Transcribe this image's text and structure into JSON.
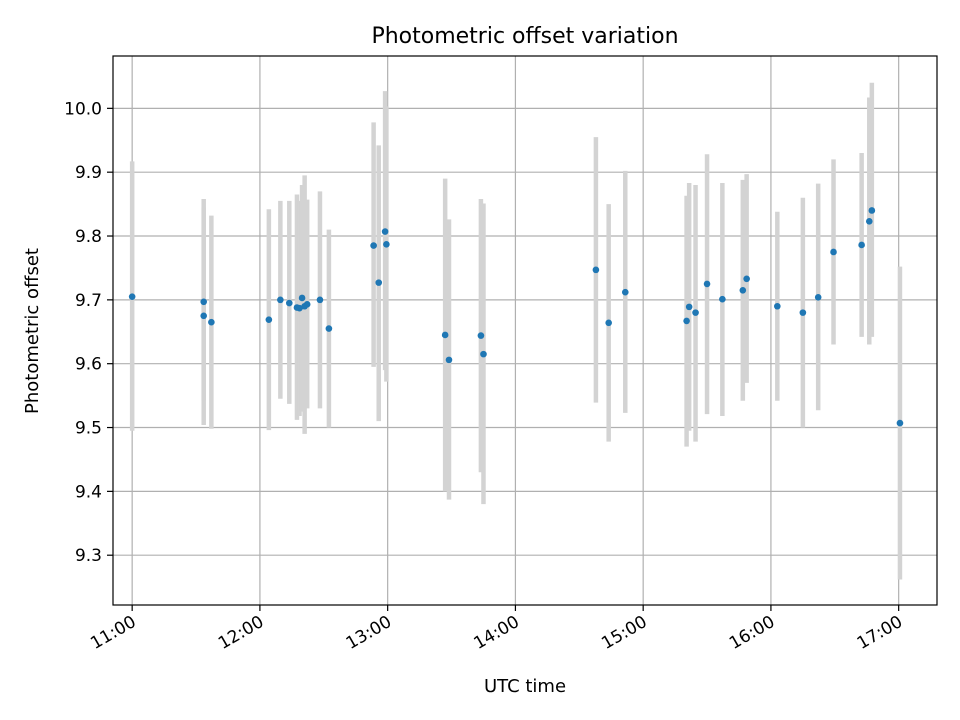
{
  "chart_data": {
    "type": "scatter",
    "title": "Photometric offset variation",
    "xlabel": "UTC time",
    "ylabel": "Photometric offset",
    "x_unit": "hours UTC",
    "xlim": [
      10.85,
      17.3
    ],
    "ylim": [
      9.222,
      10.082
    ],
    "x_ticks": [
      {
        "value": 11,
        "label": "11:00"
      },
      {
        "value": 12,
        "label": "12:00"
      },
      {
        "value": 13,
        "label": "13:00"
      },
      {
        "value": 14,
        "label": "14:00"
      },
      {
        "value": 15,
        "label": "15:00"
      },
      {
        "value": 16,
        "label": "16:00"
      },
      {
        "value": 17,
        "label": "17:00"
      }
    ],
    "y_ticks": [
      {
        "value": 9.3,
        "label": "9.3"
      },
      {
        "value": 9.4,
        "label": "9.4"
      },
      {
        "value": 9.5,
        "label": "9.5"
      },
      {
        "value": 9.6,
        "label": "9.6"
      },
      {
        "value": 9.7,
        "label": "9.7"
      },
      {
        "value": 9.8,
        "label": "9.8"
      },
      {
        "value": 9.9,
        "label": "9.9"
      },
      {
        "value": 10.0,
        "label": "10.0"
      }
    ],
    "grid": true,
    "colors": {
      "points": "#1f77b4",
      "errorbars": "#d3d3d3"
    },
    "points": [
      {
        "x": 11.0,
        "y": 9.705,
        "lo": 9.495,
        "hi": 9.917
      },
      {
        "x": 11.56,
        "y": 9.697,
        "lo": 9.542,
        "hi": 9.858
      },
      {
        "x": 11.56,
        "y": 9.675,
        "lo": 9.504,
        "hi": 9.845
      },
      {
        "x": 11.62,
        "y": 9.665,
        "lo": 9.498,
        "hi": 9.832
      },
      {
        "x": 12.07,
        "y": 9.669,
        "lo": 9.496,
        "hi": 9.842
      },
      {
        "x": 12.16,
        "y": 9.7,
        "lo": 9.545,
        "hi": 9.855
      },
      {
        "x": 12.23,
        "y": 9.695,
        "lo": 9.537,
        "hi": 9.855
      },
      {
        "x": 12.29,
        "y": 9.688,
        "lo": 9.512,
        "hi": 9.865
      },
      {
        "x": 12.31,
        "y": 9.687,
        "lo": 9.518,
        "hi": 9.855
      },
      {
        "x": 12.33,
        "y": 9.703,
        "lo": 9.525,
        "hi": 9.88
      },
      {
        "x": 12.35,
        "y": 9.69,
        "lo": 9.49,
        "hi": 9.895
      },
      {
        "x": 12.37,
        "y": 9.693,
        "lo": 9.53,
        "hi": 9.857
      },
      {
        "x": 12.47,
        "y": 9.7,
        "lo": 9.53,
        "hi": 9.87
      },
      {
        "x": 12.54,
        "y": 9.655,
        "lo": 9.5,
        "hi": 9.81
      },
      {
        "x": 12.89,
        "y": 9.785,
        "lo": 9.595,
        "hi": 9.978
      },
      {
        "x": 12.93,
        "y": 9.727,
        "lo": 9.51,
        "hi": 9.942
      },
      {
        "x": 12.98,
        "y": 9.807,
        "lo": 9.59,
        "hi": 10.027
      },
      {
        "x": 12.99,
        "y": 9.787,
        "lo": 9.572,
        "hi": 10.003
      },
      {
        "x": 13.45,
        "y": 9.645,
        "lo": 9.4,
        "hi": 9.89
      },
      {
        "x": 13.48,
        "y": 9.606,
        "lo": 9.387,
        "hi": 9.826
      },
      {
        "x": 13.73,
        "y": 9.644,
        "lo": 9.43,
        "hi": 9.858
      },
      {
        "x": 13.75,
        "y": 9.615,
        "lo": 9.38,
        "hi": 9.851
      },
      {
        "x": 14.63,
        "y": 9.747,
        "lo": 9.539,
        "hi": 9.955
      },
      {
        "x": 14.73,
        "y": 9.664,
        "lo": 9.478,
        "hi": 9.85
      },
      {
        "x": 14.86,
        "y": 9.712,
        "lo": 9.523,
        "hi": 9.902
      },
      {
        "x": 15.34,
        "y": 9.667,
        "lo": 9.47,
        "hi": 9.863
      },
      {
        "x": 15.36,
        "y": 9.689,
        "lo": 9.495,
        "hi": 9.883
      },
      {
        "x": 15.41,
        "y": 9.68,
        "lo": 9.478,
        "hi": 9.88
      },
      {
        "x": 15.5,
        "y": 9.725,
        "lo": 9.521,
        "hi": 9.928
      },
      {
        "x": 15.62,
        "y": 9.701,
        "lo": 9.518,
        "hi": 9.883
      },
      {
        "x": 15.78,
        "y": 9.715,
        "lo": 9.542,
        "hi": 9.888
      },
      {
        "x": 15.81,
        "y": 9.733,
        "lo": 9.57,
        "hi": 9.897
      },
      {
        "x": 16.05,
        "y": 9.69,
        "lo": 9.542,
        "hi": 9.838
      },
      {
        "x": 16.25,
        "y": 9.68,
        "lo": 9.5,
        "hi": 9.86
      },
      {
        "x": 16.37,
        "y": 9.704,
        "lo": 9.527,
        "hi": 9.882
      },
      {
        "x": 16.49,
        "y": 9.775,
        "lo": 9.63,
        "hi": 9.92
      },
      {
        "x": 16.71,
        "y": 9.786,
        "lo": 9.642,
        "hi": 9.93
      },
      {
        "x": 16.77,
        "y": 9.823,
        "lo": 9.63,
        "hi": 10.017
      },
      {
        "x": 16.79,
        "y": 9.84,
        "lo": 9.642,
        "hi": 10.04
      },
      {
        "x": 17.01,
        "y": 9.507,
        "lo": 9.262,
        "hi": 9.752
      }
    ]
  }
}
